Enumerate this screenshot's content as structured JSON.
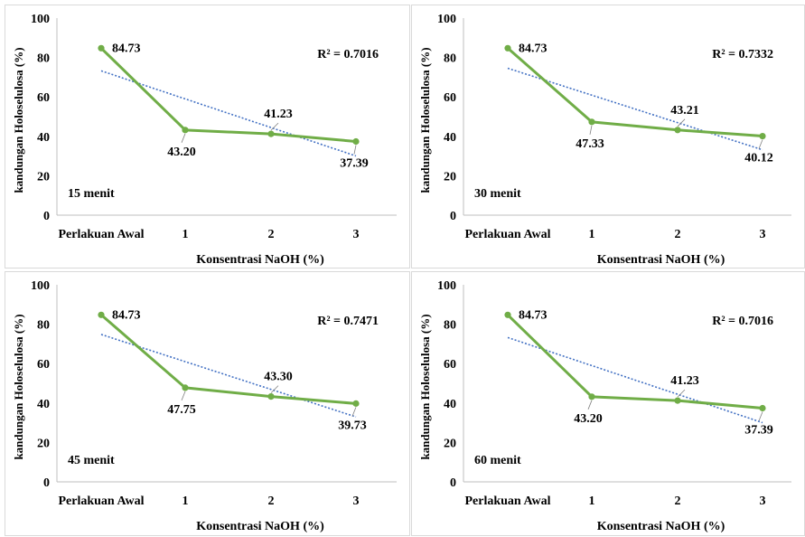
{
  "colors": {
    "series": "#70ad47",
    "trendline": "#4472c4",
    "axis": "#bfbfbf",
    "text": "#000000"
  },
  "chart_data": [
    {
      "type": "line",
      "ylabel": "kandungan Holoselulosa (%)",
      "xlabel": "Konsentrasi NaOH (%)",
      "ylim": [
        0,
        100
      ],
      "yticks": [
        "0",
        "20",
        "40",
        "60",
        "80",
        "100"
      ],
      "categories": [
        "Perlakuan Awal",
        "1",
        "2",
        "3"
      ],
      "values": [
        84.73,
        43.2,
        41.23,
        37.39
      ],
      "data_labels": [
        "84.73",
        "43.20",
        "41.23",
        "37.39"
      ],
      "r2_label": "R² = 0.7016",
      "time_label": "15 menit",
      "trendline": "linear",
      "grid": false,
      "legend": "none"
    },
    {
      "type": "line",
      "ylabel": "kandungan Holoselulosa (%)",
      "xlabel": "Konsentrasi NaOH (%)",
      "ylim": [
        0,
        100
      ],
      "yticks": [
        "0",
        "20",
        "40",
        "60",
        "80",
        "100"
      ],
      "categories": [
        "Perlakuan Awal",
        "1",
        "2",
        "3"
      ],
      "values": [
        84.73,
        47.33,
        43.21,
        40.12
      ],
      "data_labels": [
        "84.73",
        "47.33",
        "43.21",
        "40.12"
      ],
      "r2_label": "R² = 0.7332",
      "time_label": "30 menit",
      "trendline": "linear",
      "grid": false,
      "legend": "none"
    },
    {
      "type": "line",
      "ylabel": "kandungan Holoselulosa (%)",
      "xlabel": "Konsentrasi NaOH (%)",
      "ylim": [
        0,
        100
      ],
      "yticks": [
        "0",
        "20",
        "40",
        "60",
        "80",
        "100"
      ],
      "categories": [
        "Perlakuan Awal",
        "1",
        "2",
        "3"
      ],
      "values": [
        84.73,
        47.75,
        43.3,
        39.73
      ],
      "data_labels": [
        "84.73",
        "47.75",
        "43.30",
        "39.73"
      ],
      "r2_label": "R² = 0.7471",
      "time_label": "45 menit",
      "trendline": "linear",
      "grid": false,
      "legend": "none"
    },
    {
      "type": "line",
      "ylabel": "kandungan Holoselulosa (%)",
      "xlabel": "Konsentrasi NaOH (%)",
      "ylim": [
        0,
        100
      ],
      "yticks": [
        "0",
        "20",
        "40",
        "60",
        "80",
        "100"
      ],
      "categories": [
        "Perlakuan Awal",
        "1",
        "2",
        "3"
      ],
      "values": [
        84.73,
        43.2,
        41.23,
        37.39
      ],
      "data_labels": [
        "84.73",
        "43.20",
        "41.23",
        "37.39"
      ],
      "r2_label": "R² = 0.7016",
      "time_label": "60 menit",
      "trendline": "linear",
      "grid": false,
      "legend": "none"
    }
  ]
}
